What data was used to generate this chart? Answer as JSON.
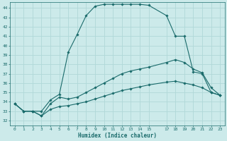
{
  "xlabel": "Humidex (Indice chaleur)",
  "bg_color": "#cceaea",
  "grid_color": "#b0d8d8",
  "line_color": "#1a6b6b",
  "xlim": [
    -0.5,
    23.5
  ],
  "ylim": [
    31.5,
    44.6
  ],
  "yticks": [
    32,
    33,
    34,
    35,
    36,
    37,
    38,
    39,
    40,
    41,
    42,
    43,
    44
  ],
  "xticks": [
    0,
    1,
    2,
    3,
    4,
    5,
    6,
    7,
    8,
    9,
    10,
    11,
    12,
    13,
    14,
    15,
    17,
    18,
    19,
    20,
    21,
    22,
    23
  ],
  "line1_x": [
    0,
    1,
    2,
    3,
    4,
    5,
    6,
    7,
    8,
    9,
    10,
    11,
    12,
    13,
    14,
    15,
    17,
    18,
    19,
    20,
    21,
    22,
    23
  ],
  "line1_y": [
    33.8,
    33.0,
    33.0,
    33.0,
    34.2,
    34.8,
    39.3,
    41.2,
    43.2,
    44.2,
    44.4,
    44.4,
    44.4,
    44.4,
    44.4,
    44.3,
    43.2,
    41.0,
    41.0,
    37.2,
    37.0,
    35.0,
    34.7
  ],
  "line2_x": [
    0,
    1,
    2,
    3,
    4,
    5,
    6,
    7,
    8,
    9,
    10,
    11,
    12,
    13,
    14,
    15,
    17,
    18,
    19,
    20,
    21,
    22,
    23
  ],
  "line2_y": [
    33.8,
    33.0,
    33.0,
    32.5,
    33.8,
    34.5,
    34.3,
    34.5,
    35.0,
    35.5,
    36.0,
    36.5,
    37.0,
    37.3,
    37.5,
    37.7,
    38.2,
    38.5,
    38.2,
    37.5,
    37.1,
    35.5,
    34.7
  ],
  "line3_x": [
    0,
    1,
    2,
    3,
    4,
    5,
    6,
    7,
    8,
    9,
    10,
    11,
    12,
    13,
    14,
    15,
    17,
    18,
    19,
    20,
    21,
    22,
    23
  ],
  "line3_y": [
    33.8,
    33.0,
    33.0,
    32.5,
    33.2,
    33.5,
    33.6,
    33.8,
    34.0,
    34.3,
    34.6,
    34.9,
    35.2,
    35.4,
    35.6,
    35.8,
    36.1,
    36.2,
    36.0,
    35.8,
    35.5,
    35.0,
    34.7
  ]
}
